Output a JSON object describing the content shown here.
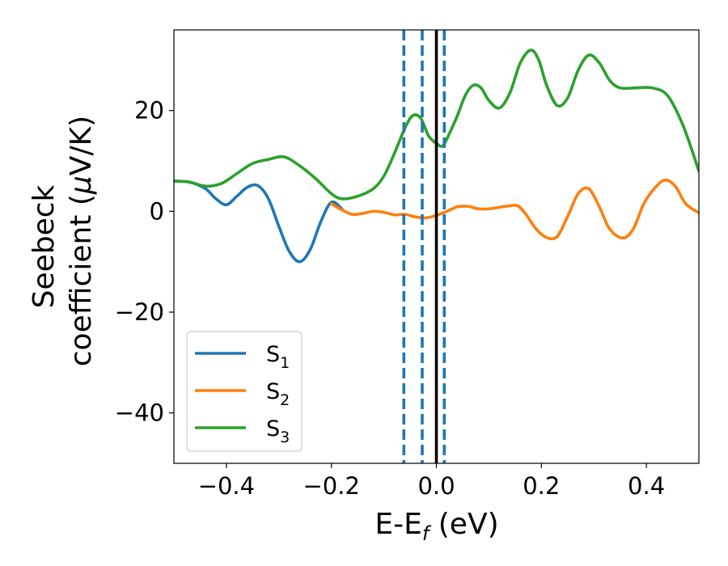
{
  "chart_data": {
    "type": "line",
    "xlabel": "E-E",
    "xlabel_sub": "f",
    "xlabel_unit": " (eV)",
    "ylabel_line1": "Seebeck",
    "ylabel_line2": "coefficient  (",
    "ylabel_mu": "μ",
    "ylabel_unit": "V/K)",
    "xlim": [
      -0.5,
      0.5
    ],
    "ylim": [
      -50,
      36
    ],
    "xticks": [
      -0.4,
      -0.2,
      0.0,
      0.2,
      0.4
    ],
    "xtick_labels": [
      "−0.4",
      "−0.2",
      "0.0",
      "0.2",
      "0.4"
    ],
    "yticks": [
      -40,
      -20,
      0,
      20
    ],
    "ytick_labels": [
      "−40",
      "−20",
      "0",
      "20"
    ],
    "grid": false,
    "legend_placement": "lower-left",
    "vlines": [
      {
        "x": -0.062,
        "style": "dashed",
        "color": "#1f77b4"
      },
      {
        "x": -0.027,
        "style": "dashed",
        "color": "#1f77b4"
      },
      {
        "x": 0.015,
        "style": "dashed",
        "color": "#1f77b4"
      },
      {
        "x": 0.0,
        "style": "solid",
        "color": "#000000"
      }
    ],
    "series": [
      {
        "name": "S",
        "sub": "1",
        "color": "#1f77b4",
        "x": [
          -0.5,
          -0.47,
          -0.44,
          -0.42,
          -0.4,
          -0.38,
          -0.36,
          -0.34,
          -0.32,
          -0.3,
          -0.28,
          -0.26,
          -0.24,
          -0.22,
          -0.2,
          -0.18
        ],
        "y": [
          6.0,
          5.8,
          4.5,
          2.5,
          1.3,
          3.0,
          4.8,
          5.1,
          2.5,
          -3.0,
          -8.0,
          -10.0,
          -7.5,
          -2.0,
          1.8,
          0.5
        ]
      },
      {
        "name": "S",
        "sub": "2",
        "color": "#ff7f0e",
        "x": [
          -0.2,
          -0.18,
          -0.16,
          -0.14,
          -0.12,
          -0.1,
          -0.08,
          -0.06,
          -0.04,
          -0.02,
          0.0,
          0.02,
          0.04,
          0.06,
          0.08,
          0.1,
          0.12,
          0.14,
          0.155,
          0.17,
          0.19,
          0.21,
          0.23,
          0.25,
          0.27,
          0.29,
          0.31,
          0.33,
          0.355,
          0.375,
          0.395,
          0.415,
          0.435,
          0.455,
          0.475,
          0.5
        ],
        "y": [
          1.5,
          0.3,
          -0.6,
          -0.4,
          0.0,
          -0.2,
          -0.7,
          -0.6,
          -1.1,
          -1.3,
          -0.8,
          0.0,
          0.9,
          1.0,
          0.5,
          0.5,
          0.8,
          1.1,
          1.1,
          -0.5,
          -3.5,
          -5.2,
          -5.0,
          -1.0,
          3.5,
          4.5,
          1.0,
          -3.5,
          -5.3,
          -3.5,
          1.5,
          4.5,
          6.2,
          5.0,
          1.5,
          -0.3
        ]
      },
      {
        "name": "S",
        "sub": "3",
        "color": "#2ca02c",
        "x": [
          -0.5,
          -0.47,
          -0.44,
          -0.41,
          -0.38,
          -0.35,
          -0.32,
          -0.29,
          -0.26,
          -0.23,
          -0.2,
          -0.18,
          -0.15,
          -0.12,
          -0.1,
          -0.08,
          -0.06,
          -0.045,
          -0.03,
          -0.015,
          0.0,
          0.012,
          0.025,
          0.04,
          0.055,
          0.07,
          0.085,
          0.1,
          0.12,
          0.14,
          0.16,
          0.18,
          0.195,
          0.21,
          0.23,
          0.25,
          0.27,
          0.29,
          0.31,
          0.33,
          0.35,
          0.38,
          0.41,
          0.44,
          0.47,
          0.5
        ],
        "y": [
          6.0,
          5.8,
          5.0,
          5.5,
          7.5,
          9.5,
          10.3,
          10.8,
          9.0,
          6.5,
          3.5,
          2.5,
          3.0,
          4.5,
          7.0,
          11.5,
          16.5,
          19.0,
          18.5,
          15.0,
          13.5,
          13.0,
          15.5,
          19.0,
          23.0,
          25.0,
          24.5,
          22.0,
          20.5,
          23.5,
          29.5,
          32.0,
          30.0,
          25.0,
          21.0,
          22.5,
          28.0,
          31.0,
          29.5,
          26.0,
          24.5,
          24.5,
          24.5,
          23.0,
          17.0,
          8.0
        ]
      }
    ]
  }
}
